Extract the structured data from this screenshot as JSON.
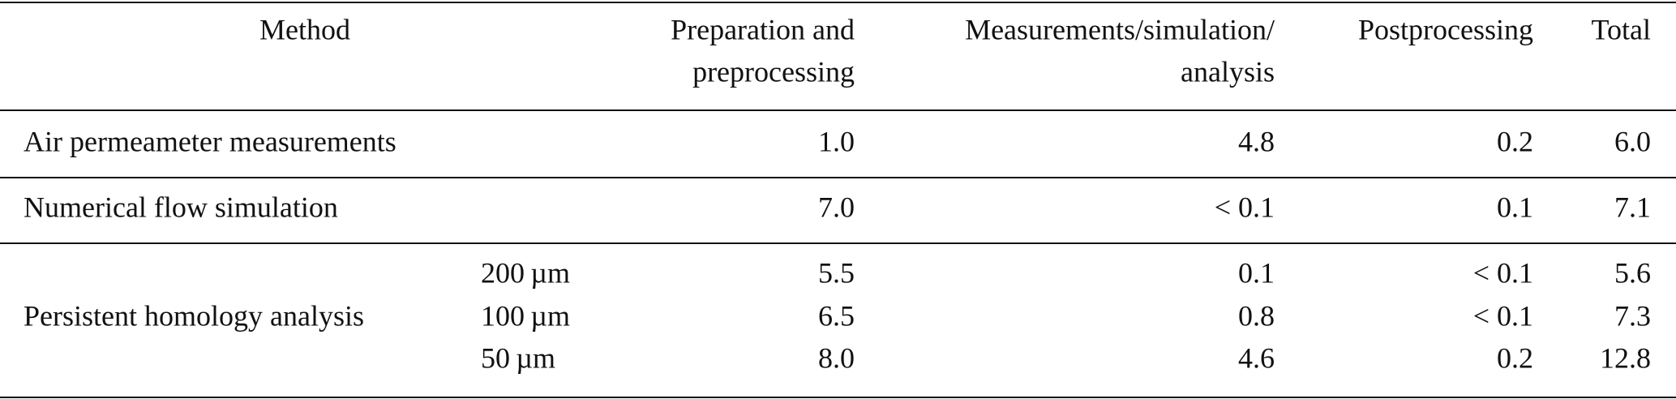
{
  "table": {
    "columns": [
      [
        "Method"
      ],
      [
        "Preparation and",
        "preprocessing"
      ],
      [
        "Measurements/simulation/",
        "analysis"
      ],
      [
        "Postprocessing"
      ],
      [
        "Total"
      ]
    ],
    "rows": [
      {
        "method": "Air permeameter measurements",
        "values": [
          "1.0",
          "4.8",
          "0.2",
          "6.0"
        ]
      },
      {
        "method": "Numerical flow simulation",
        "values": [
          "7.0",
          "< 0.1",
          "0.1",
          "7.1"
        ]
      },
      {
        "method": "Persistent homology analysis",
        "subrows": [
          {
            "resolution": "200 µm",
            "values": [
              "5.5",
              "0.1",
              "< 0.1",
              "5.6"
            ]
          },
          {
            "resolution": "100 µm",
            "values": [
              "6.5",
              "0.8",
              "< 0.1",
              "7.3"
            ]
          },
          {
            "resolution": "50 µm",
            "values": [
              "8.0",
              "4.6",
              "0.2",
              "12.8"
            ]
          }
        ]
      }
    ]
  }
}
